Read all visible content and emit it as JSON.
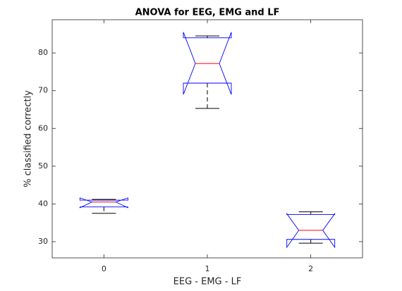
{
  "chart_data": {
    "type": "boxplot",
    "title": "ANOVA for EEG, EMG and LF",
    "x_label": "EEG - EMG - LF",
    "y_label": "% classified correctly",
    "x": [
      0,
      1,
      2
    ],
    "whisker_low": [
      37.5,
      65.3,
      29.6
    ],
    "q1": [
      39.2,
      72.0,
      30.6
    ],
    "median": [
      40.5,
      77.2,
      33.0
    ],
    "q3": [
      41.0,
      84.0,
      37.2
    ],
    "whisker_high": [
      41.2,
      84.5,
      37.9
    ],
    "notch_low": [
      39.0,
      69.0,
      28.5
    ],
    "notch_high": [
      41.6,
      85.5,
      37.4
    ],
    "box_color": "#0000ff",
    "median_color": "#ff0000",
    "whisker_color": "#000000",
    "xlim": [
      -0.5,
      2.5
    ],
    "ylim": [
      25.7,
      88.8
    ],
    "xticks": [
      0,
      1,
      2
    ],
    "yticks": [
      30,
      40,
      50,
      60,
      70,
      80
    ]
  }
}
